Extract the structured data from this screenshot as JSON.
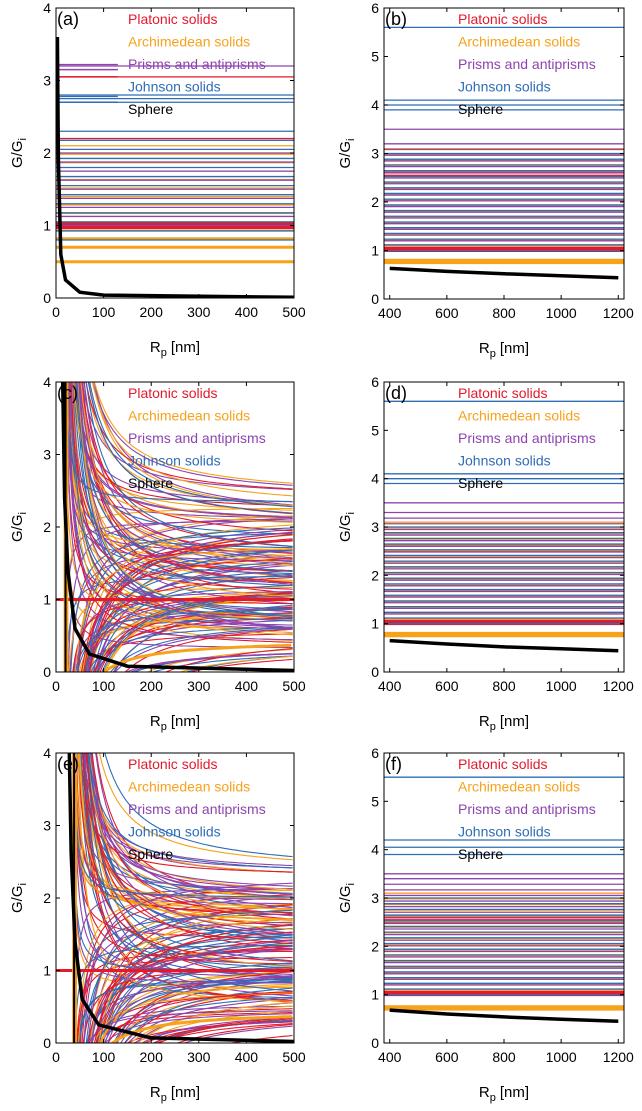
{
  "legend": [
    {
      "label": "Platonic solids",
      "color": "#e31a2c"
    },
    {
      "label": "Archimedean solids",
      "color": "#f7a21b"
    },
    {
      "label": "Prisms and antiprisms",
      "color": "#8e44ad"
    },
    {
      "label": "Johnson solids",
      "color": "#2f6db5"
    },
    {
      "label": "Sphere",
      "color": "#000000"
    }
  ],
  "chart_data": [
    {
      "panel": "(a)",
      "type": "line",
      "xlabel": "R",
      "xlabel_sub": "p",
      "xlabel_unit": "[nm]",
      "ylabel": "G/G",
      "ylabel_sub": "i",
      "xlim": [
        0,
        500
      ],
      "ylim": [
        0,
        4
      ],
      "xticks": [
        0,
        100,
        200,
        300,
        400,
        500
      ],
      "yticks": [
        0,
        1,
        2,
        3,
        4
      ],
      "mode": "constant",
      "level_ranges": {
        "Platonic solids": [
          [
            0.97,
            1.03
          ],
          [
            2.2,
            2.2
          ],
          [
            3.05,
            3.05
          ]
        ],
        "Archimedean solids": [
          [
            0.5,
            0.5
          ],
          [
            0.7,
            2.1
          ]
        ],
        "Prisms and antiprisms": [
          [
            1.0,
            2.0
          ],
          [
            3.2,
            3.2
          ]
        ],
        "Johnson solids": [
          [
            0.8,
            2.3
          ],
          [
            2.7,
            2.8
          ]
        ]
      },
      "sphere": [
        [
          3,
          3.6
        ],
        [
          5,
          1.9
        ],
        [
          10,
          0.6
        ],
        [
          20,
          0.25
        ],
        [
          50,
          0.08
        ],
        [
          100,
          0.04
        ],
        [
          500,
          0.01
        ]
      ]
    },
    {
      "panel": "(b)",
      "type": "line",
      "xlabel": "R",
      "xlabel_sub": "p",
      "xlabel_unit": "[nm]",
      "ylabel": "G/G",
      "ylabel_sub": "i",
      "xlim": [
        380,
        1220
      ],
      "ylim": [
        0,
        6
      ],
      "xticks": [
        400,
        600,
        800,
        1000,
        1200
      ],
      "yticks": [
        0,
        1,
        2,
        3,
        4,
        5,
        6
      ],
      "mode": "constant",
      "level_ranges": {
        "Platonic solids": [
          [
            1.0,
            1.05
          ],
          [
            2.5,
            2.6
          ]
        ],
        "Archimedean solids": [
          [
            0.75,
            0.8
          ],
          [
            1.1,
            3.1
          ]
        ],
        "Prisms and antiprisms": [
          [
            1.2,
            3.2
          ],
          [
            3.5,
            3.5
          ]
        ],
        "Johnson solids": [
          [
            1.0,
            3.0
          ],
          [
            3.9,
            4.1
          ],
          [
            5.6,
            5.6
          ]
        ]
      },
      "sphere": [
        [
          400,
          0.63
        ],
        [
          600,
          0.57
        ],
        [
          800,
          0.52
        ],
        [
          1000,
          0.48
        ],
        [
          1200,
          0.44
        ]
      ]
    },
    {
      "panel": "(c)",
      "type": "line",
      "xlabel": "R",
      "xlabel_sub": "p",
      "xlabel_unit": "[nm]",
      "ylabel": "G/G",
      "ylabel_sub": "i",
      "xlim": [
        0,
        500
      ],
      "ylim": [
        0,
        4
      ],
      "xticks": [
        0,
        100,
        200,
        300,
        400,
        500
      ],
      "yticks": [
        0,
        1,
        2,
        3,
        4
      ],
      "mode": "size-dependent",
      "d0": 22,
      "sphere": [
        [
          14,
          4
        ],
        [
          18,
          2.4
        ],
        [
          25,
          1.4
        ],
        [
          40,
          0.6
        ],
        [
          70,
          0.25
        ],
        [
          150,
          0.08
        ],
        [
          500,
          0.02
        ]
      ]
    },
    {
      "panel": "(d)",
      "type": "line",
      "xlabel": "R",
      "xlabel_sub": "p",
      "xlabel_unit": "[nm]",
      "ylabel": "G/G",
      "ylabel_sub": "i",
      "xlim": [
        380,
        1220
      ],
      "ylim": [
        0,
        6
      ],
      "xticks": [
        400,
        600,
        800,
        1000,
        1200
      ],
      "yticks": [
        0,
        1,
        2,
        3,
        4,
        5,
        6
      ],
      "mode": "constant",
      "level_ranges": {
        "Platonic solids": [
          [
            1.0,
            1.05
          ],
          [
            2.4,
            2.6
          ]
        ],
        "Archimedean solids": [
          [
            0.75,
            0.8
          ],
          [
            1.1,
            3.1
          ]
        ],
        "Prisms and antiprisms": [
          [
            1.2,
            3.3
          ],
          [
            3.5,
            3.5
          ]
        ],
        "Johnson solids": [
          [
            1.0,
            3.0
          ],
          [
            3.9,
            4.1
          ],
          [
            5.6,
            5.6
          ]
        ]
      },
      "sphere": [
        [
          400,
          0.65
        ],
        [
          600,
          0.58
        ],
        [
          800,
          0.52
        ],
        [
          1000,
          0.48
        ],
        [
          1200,
          0.44
        ]
      ]
    },
    {
      "panel": "(e)",
      "type": "line",
      "xlabel": "R",
      "xlabel_sub": "p",
      "xlabel_unit": "[nm]",
      "ylabel": "G/G",
      "ylabel_sub": "i",
      "xlim": [
        0,
        500
      ],
      "ylim": [
        0,
        4
      ],
      "xticks": [
        0,
        100,
        200,
        300,
        400,
        500
      ],
      "yticks": [
        0,
        1,
        2,
        3,
        4
      ],
      "mode": "size-dependent",
      "d0": 40,
      "sphere": [
        [
          28,
          4
        ],
        [
          32,
          2.6
        ],
        [
          40,
          1.4
        ],
        [
          55,
          0.6
        ],
        [
          90,
          0.25
        ],
        [
          200,
          0.07
        ],
        [
          500,
          0.02
        ]
      ]
    },
    {
      "panel": "(f)",
      "type": "line",
      "xlabel": "R",
      "xlabel_sub": "p",
      "xlabel_unit": "[nm]",
      "ylabel": "G/G",
      "ylabel_sub": "i",
      "xlim": [
        380,
        1220
      ],
      "ylim": [
        0,
        6
      ],
      "xticks": [
        400,
        600,
        800,
        1000,
        1200
      ],
      "yticks": [
        0,
        1,
        2,
        3,
        4,
        5,
        6
      ],
      "mode": "constant",
      "level_ranges": {
        "Platonic solids": [
          [
            1.0,
            1.05
          ],
          [
            2.5,
            2.6
          ]
        ],
        "Archimedean solids": [
          [
            0.7,
            0.75
          ],
          [
            1.1,
            3.1
          ]
        ],
        "Prisms and antiprisms": [
          [
            1.2,
            3.4
          ],
          [
            3.5,
            3.5
          ]
        ],
        "Johnson solids": [
          [
            1.0,
            3.0
          ],
          [
            3.9,
            4.2
          ],
          [
            5.5,
            5.5
          ]
        ]
      },
      "sphere": [
        [
          400,
          0.68
        ],
        [
          600,
          0.6
        ],
        [
          800,
          0.54
        ],
        [
          1000,
          0.49
        ],
        [
          1200,
          0.45
        ]
      ]
    }
  ]
}
